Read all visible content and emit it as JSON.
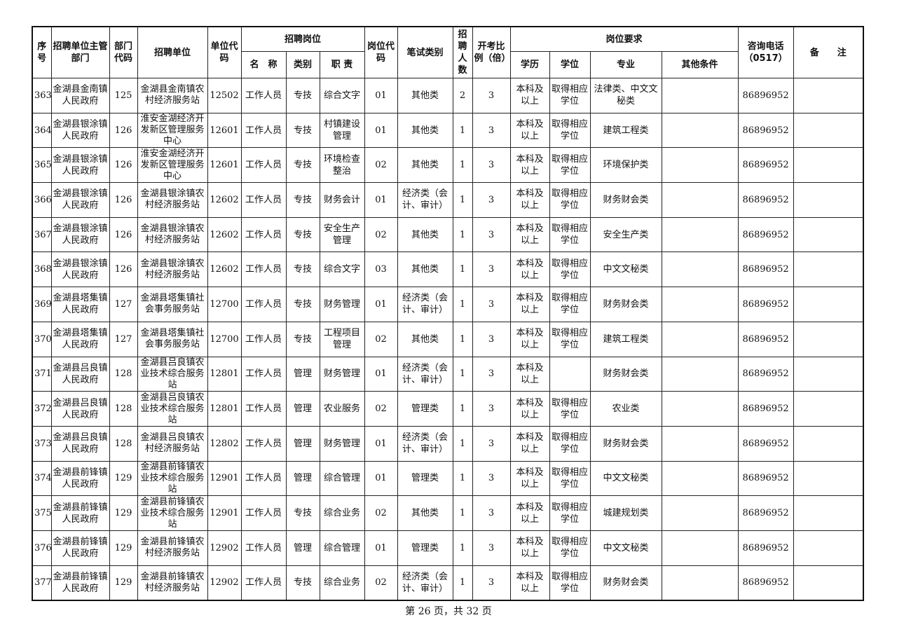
{
  "headers": {
    "seq": "序号",
    "dept": "招聘单位主管部门",
    "dept_code": "部门代码",
    "unit": "招聘单位",
    "unit_code": "单位代码",
    "position_group": "招聘岗位",
    "pos_name": "名　称",
    "pos_type": "类别",
    "pos_duty": "职 责",
    "pos_code": "岗位代码",
    "exam_type": "笔试类别",
    "count": "招聘人数",
    "ratio": "开考比例（倍）",
    "req_group": "岗位要求",
    "edu": "学历",
    "degree": "学位",
    "major": "专业",
    "other": "其他条件",
    "phone": "咨询电话（0517）",
    "note": "备　　注"
  },
  "rows": [
    [
      "363",
      "金湖县金南镇人民政府",
      "125",
      "金湖县金南镇农村经济服务站",
      "12502",
      "工作人员",
      "专技",
      "综合文字",
      "01",
      "其他类",
      "2",
      "3",
      "本科及以上",
      "取得相应学位",
      "法律类、中文文秘类",
      "",
      "86896952",
      ""
    ],
    [
      "364",
      "金湖县银涂镇人民政府",
      "126",
      "淮安金湖经济开发新区管理服务中心",
      "12601",
      "工作人员",
      "专技",
      "村镇建设管理",
      "01",
      "其他类",
      "1",
      "3",
      "本科及以上",
      "取得相应学位",
      "建筑工程类",
      "",
      "86896952",
      ""
    ],
    [
      "365",
      "金湖县银涂镇人民政府",
      "126",
      "淮安金湖经济开发新区管理服务中心",
      "12601",
      "工作人员",
      "专技",
      "环境检查整治",
      "02",
      "其他类",
      "1",
      "3",
      "本科及以上",
      "取得相应学位",
      "环境保护类",
      "",
      "86896952",
      ""
    ],
    [
      "366",
      "金湖县银涂镇人民政府",
      "126",
      "金湖县银涂镇农村经济服务站",
      "12602",
      "工作人员",
      "专技",
      "财务会计",
      "01",
      "经济类（会计、审计）",
      "1",
      "3",
      "本科及以上",
      "取得相应学位",
      "财务财会类",
      "",
      "86896952",
      ""
    ],
    [
      "367",
      "金湖县银涂镇人民政府",
      "126",
      "金湖县银涂镇农村经济服务站",
      "12602",
      "工作人员",
      "专技",
      "安全生产管理",
      "02",
      "其他类",
      "1",
      "3",
      "本科及以上",
      "取得相应学位",
      "安全生产类",
      "",
      "86896952",
      ""
    ],
    [
      "368",
      "金湖县银涂镇人民政府",
      "126",
      "金湖县银涂镇农村经济服务站",
      "12602",
      "工作人员",
      "专技",
      "综合文字",
      "03",
      "其他类",
      "1",
      "3",
      "本科及以上",
      "取得相应学位",
      "中文文秘类",
      "",
      "86896952",
      ""
    ],
    [
      "369",
      "金湖县塔集镇人民政府",
      "127",
      "金湖县塔集镇社会事务服务站",
      "12700",
      "工作人员",
      "专技",
      "财务管理",
      "01",
      "经济类（会计、审计）",
      "1",
      "3",
      "本科及以上",
      "取得相应学位",
      "财务财会类",
      "",
      "86896952",
      ""
    ],
    [
      "370",
      "金湖县塔集镇人民政府",
      "127",
      "金湖县塔集镇社会事务服务站",
      "12700",
      "工作人员",
      "专技",
      "工程项目管理",
      "02",
      "其他类",
      "1",
      "3",
      "本科及以上",
      "取得相应学位",
      "建筑工程类",
      "",
      "86896952",
      ""
    ],
    [
      "371",
      "金湖县吕良镇人民政府",
      "128",
      "金湖县吕良镇农业技术综合服务站",
      "12801",
      "工作人员",
      "管理",
      "财务管理",
      "01",
      "经济类（会计、审计）",
      "1",
      "3",
      "本科及以上",
      "",
      "财务财会类",
      "",
      "86896952",
      ""
    ],
    [
      "372",
      "金湖县吕良镇人民政府",
      "128",
      "金湖县吕良镇农业技术综合服务站",
      "12801",
      "工作人员",
      "管理",
      "农业服务",
      "02",
      "管理类",
      "1",
      "3",
      "本科及以上",
      "取得相应学位",
      "农业类",
      "",
      "86896952",
      ""
    ],
    [
      "373",
      "金湖县吕良镇人民政府",
      "128",
      "金湖县吕良镇农村经济服务站",
      "12802",
      "工作人员",
      "管理",
      "财务管理",
      "01",
      "经济类（会计、审计）",
      "1",
      "3",
      "本科及以上",
      "取得相应学位",
      "财务财会类",
      "",
      "86896952",
      ""
    ],
    [
      "374",
      "金湖县前锋镇人民政府",
      "129",
      "金湖县前锋镇农业技术综合服务站",
      "12901",
      "工作人员",
      "管理",
      "综合管理",
      "01",
      "管理类",
      "1",
      "3",
      "本科及以上",
      "取得相应学位",
      "中文文秘类",
      "",
      "86896952",
      ""
    ],
    [
      "375",
      "金湖县前锋镇人民政府",
      "129",
      "金湖县前锋镇农业技术综合服务站",
      "12901",
      "工作人员",
      "专技",
      "综合业务",
      "02",
      "其他类",
      "1",
      "3",
      "本科及以上",
      "取得相应学位",
      "城建规划类",
      "",
      "86896952",
      ""
    ],
    [
      "376",
      "金湖县前锋镇人民政府",
      "129",
      "金湖县前锋镇农村经济服务站",
      "12902",
      "工作人员",
      "管理",
      "综合管理",
      "01",
      "管理类",
      "1",
      "3",
      "本科及以上",
      "取得相应学位",
      "中文文秘类",
      "",
      "86896952",
      ""
    ],
    [
      "377",
      "金湖县前锋镇人民政府",
      "129",
      "金湖县前锋镇农村经济服务站",
      "12902",
      "工作人员",
      "专技",
      "综合业务",
      "02",
      "经济类（会计、审计）",
      "1",
      "3",
      "本科及以上",
      "取得相应学位",
      "财务财会类",
      "",
      "86896952",
      ""
    ]
  ],
  "footer": "第 26 页，共 32 页"
}
